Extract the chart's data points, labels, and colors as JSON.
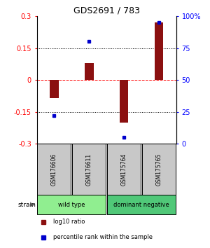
{
  "title": "GDS2691 / 783",
  "samples": [
    "GSM176606",
    "GSM176611",
    "GSM175764",
    "GSM175765"
  ],
  "log10_ratio": [
    -0.085,
    0.08,
    -0.2,
    0.27
  ],
  "percentile_rank": [
    22,
    80,
    5,
    95
  ],
  "ylim_left": [
    -0.3,
    0.3
  ],
  "ylim_right": [
    0,
    100
  ],
  "yticks_left": [
    -0.3,
    -0.15,
    0,
    0.15,
    0.3
  ],
  "yticks_right": [
    0,
    25,
    50,
    75,
    100
  ],
  "ytick_labels_right": [
    "0",
    "25",
    "50",
    "75",
    "100%"
  ],
  "bar_color": "#8B1010",
  "dot_color": "#0000CC",
  "groups": [
    {
      "label": "wild type",
      "color": "#90EE90",
      "start": 0,
      "end": 1
    },
    {
      "label": "dominant negative",
      "color": "#50C878",
      "start": 2,
      "end": 3
    }
  ],
  "strain_label": "strain",
  "legend": [
    {
      "color": "#8B1010",
      "label": "log10 ratio"
    },
    {
      "color": "#0000CC",
      "label": "percentile rank within the sample"
    }
  ],
  "label_box_color": "#C8C8C8",
  "plot_bg": "#FFFFFF"
}
